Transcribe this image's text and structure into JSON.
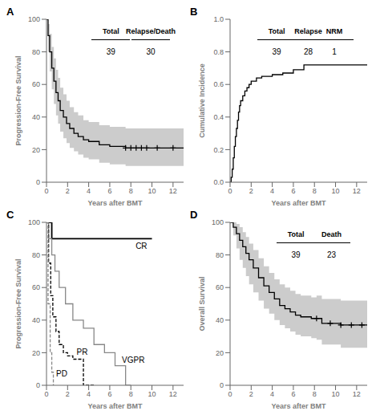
{
  "chart_data": [
    {
      "type": "step",
      "title": "A",
      "xlabel": "Years after BMT",
      "ylabel": "Progression-Free Survival",
      "xlim": [
        0,
        13
      ],
      "ylim": [
        0,
        100
      ],
      "xticks": [
        0,
        2,
        4,
        6,
        8,
        10,
        12
      ],
      "yticks": [
        0,
        20,
        40,
        60,
        80,
        100
      ],
      "grid": false,
      "table": {
        "headers": [
          "Total",
          "Relapse/Death"
        ],
        "values": [
          "39",
          "30"
        ]
      },
      "series": [
        {
          "type": "band",
          "color": "#cccccc",
          "x": [
            0,
            0.15,
            0.3,
            0.5,
            0.7,
            0.9,
            1.1,
            1.3,
            1.6,
            1.9,
            2.2,
            2.6,
            3.0,
            3.5,
            4.0,
            5.0,
            6.0,
            7.0,
            7.5,
            13.0
          ],
          "upper": [
            100,
            97,
            91,
            83,
            76,
            69,
            64,
            58,
            54,
            50,
            46,
            43,
            41,
            38,
            37,
            35,
            34,
            34,
            33,
            33
          ],
          "lower": [
            100,
            80,
            68,
            57,
            48,
            41,
            36,
            31,
            27,
            24,
            21,
            19,
            17,
            15,
            14,
            12,
            11,
            11,
            10,
            10
          ]
        },
        {
          "color": "#000000",
          "x": [
            0,
            0.15,
            0.3,
            0.5,
            0.7,
            0.9,
            1.1,
            1.3,
            1.6,
            1.9,
            2.2,
            2.6,
            3.0,
            3.5,
            4.0,
            5.0,
            6.0,
            7.0,
            7.5,
            13.0
          ],
          "values": [
            100,
            90,
            80,
            70,
            62,
            55,
            50,
            44,
            40,
            36,
            33,
            30,
            28,
            26,
            25,
            23,
            22,
            22,
            21,
            21
          ]
        },
        {
          "type": "scatter",
          "marker": "+",
          "color": "#000000",
          "x": [
            7.5,
            8.0,
            8.5,
            9.0,
            9.5,
            10.5,
            12.0
          ],
          "values": [
            21,
            21,
            21,
            21,
            21,
            21,
            21
          ]
        }
      ]
    },
    {
      "type": "step",
      "title": "B",
      "xlabel": "Years after BMT",
      "ylabel": "Cumulative Incidence",
      "xlim": [
        0,
        13
      ],
      "ylim": [
        0,
        1.0
      ],
      "xticks": [
        0,
        2,
        4,
        6,
        8,
        10,
        12
      ],
      "yticks": [
        {
          "value": 0,
          "label": "0.0"
        },
        0.2,
        0.4,
        0.6,
        0.8,
        {
          "value": 1.0,
          "label": "1.0"
        }
      ],
      "grid": false,
      "table": {
        "headers": [
          "Total",
          "Relapse",
          "NRM"
        ],
        "values": [
          "39",
          "28",
          "1"
        ]
      },
      "series": [
        {
          "color": "#000000",
          "x": [
            0,
            0.1,
            0.2,
            0.3,
            0.4,
            0.5,
            0.6,
            0.7,
            0.8,
            0.9,
            1.0,
            1.2,
            1.4,
            1.6,
            1.8,
            2.0,
            2.5,
            3.0,
            4.0,
            5.0,
            6.0,
            7.0,
            7.5,
            8.0,
            13.0
          ],
          "values": [
            0,
            0.03,
            0.08,
            0.15,
            0.22,
            0.28,
            0.33,
            0.38,
            0.43,
            0.47,
            0.5,
            0.53,
            0.56,
            0.58,
            0.6,
            0.62,
            0.64,
            0.65,
            0.66,
            0.67,
            0.69,
            0.72,
            0.72,
            0.72,
            0.72
          ]
        }
      ]
    },
    {
      "type": "line",
      "title": "C",
      "xlabel": "Years after BMT",
      "ylabel": "Progression-Free Survival",
      "xlim": [
        0,
        13
      ],
      "ylim": [
        0,
        100
      ],
      "xticks": [
        0,
        2,
        4,
        6,
        8,
        10,
        12
      ],
      "yticks": [
        0,
        20,
        40,
        60,
        80,
        100
      ],
      "grid": false,
      "series": [
        {
          "name": "CR",
          "color": "#000000",
          "line_style": "solid",
          "x": [
            0,
            0.5,
            0.5,
            10.0
          ],
          "values": [
            100,
            100,
            90,
            90
          ]
        },
        {
          "name": "VGPR",
          "color": "#888888",
          "line_style": "solid",
          "x": [
            0,
            0.2,
            0.2,
            0.5,
            0.5,
            0.8,
            0.8,
            1.2,
            1.2,
            1.8,
            1.8,
            2.5,
            2.5,
            3.5,
            3.5,
            4.5,
            4.5,
            5.5,
            5.5,
            6.5,
            6.5,
            7.5,
            7.5,
            8.0
          ],
          "values": [
            100,
            100,
            90,
            90,
            80,
            80,
            70,
            70,
            60,
            60,
            50,
            50,
            40,
            40,
            35,
            35,
            25,
            25,
            20,
            20,
            12,
            12,
            0,
            0
          ]
        },
        {
          "name": "PR",
          "color": "#000000",
          "line_style": "dashed",
          "x": [
            0,
            0.2,
            0.2,
            0.4,
            0.4,
            0.6,
            0.6,
            0.9,
            0.9,
            1.2,
            1.2,
            1.6,
            1.6,
            2.0,
            2.0,
            2.5,
            2.5,
            3.0,
            3.0,
            3.5,
            3.5,
            4.0,
            4.0,
            4.5,
            4.5
          ],
          "values": [
            100,
            100,
            75,
            75,
            55,
            55,
            42,
            42,
            33,
            33,
            25,
            25,
            20,
            20,
            18,
            18,
            16,
            16,
            16,
            16,
            0,
            0,
            0,
            0,
            0
          ]
        },
        {
          "name": "PD",
          "color": "#888888",
          "line_style": "dashed",
          "x": [
            0,
            0.15,
            0.15,
            0.35,
            0.35,
            0.5,
            0.5,
            0.65,
            0.65
          ],
          "values": [
            100,
            100,
            50,
            50,
            20,
            20,
            8,
            8,
            0
          ]
        }
      ]
    },
    {
      "type": "step",
      "title": "D",
      "xlabel": "Years after BMT",
      "ylabel": "Overall Survival",
      "xlim": [
        0,
        13
      ],
      "ylim": [
        0,
        100
      ],
      "xticks": [
        0,
        2,
        4,
        6,
        8,
        10,
        12
      ],
      "yticks": [
        0,
        20,
        40,
        60,
        80,
        100
      ],
      "grid": false,
      "table": {
        "headers": [
          "Total",
          "Death"
        ],
        "values": [
          "39",
          "23"
        ]
      },
      "series": [
        {
          "type": "band",
          "color": "#cccccc",
          "x": [
            0,
            0.3,
            0.6,
            0.9,
            1.2,
            1.5,
            1.8,
            2.2,
            2.7,
            3.2,
            3.7,
            4.2,
            4.7,
            5.2,
            5.7,
            6.2,
            6.7,
            7.2,
            7.7,
            8.2,
            8.7,
            9.5,
            10.5,
            11.5,
            12.5,
            13.0
          ],
          "upper": [
            100,
            100,
            99,
            97,
            94,
            91,
            87,
            83,
            78,
            73,
            69,
            65,
            62,
            60,
            58,
            56,
            55,
            55,
            54,
            55,
            53,
            53,
            52,
            52,
            52,
            52
          ],
          "lower": [
            100,
            92,
            84,
            77,
            72,
            67,
            62,
            57,
            52,
            47,
            44,
            40,
            37,
            35,
            33,
            31,
            30,
            30,
            29,
            28,
            25,
            25,
            23,
            23,
            23,
            23
          ]
        },
        {
          "color": "#000000",
          "x": [
            0,
            0.3,
            0.6,
            0.9,
            1.2,
            1.5,
            1.8,
            2.2,
            2.7,
            3.2,
            3.7,
            4.2,
            4.7,
            5.2,
            5.7,
            6.2,
            6.7,
            7.2,
            7.7,
            8.2,
            8.7,
            9.5,
            10.5,
            11.5,
            12.5,
            13.0
          ],
          "values": [
            100,
            97,
            93,
            89,
            85,
            81,
            77,
            72,
            66,
            61,
            57,
            53,
            49,
            47,
            45,
            43,
            42,
            42,
            41,
            41,
            38,
            38,
            37,
            37,
            37,
            37
          ]
        },
        {
          "type": "scatter",
          "marker": "+",
          "color": "#000000",
          "x": [
            8.2,
            9.5,
            10.5,
            11.5,
            12.5
          ],
          "values": [
            41,
            38,
            37,
            37,
            37
          ]
        }
      ]
    }
  ]
}
